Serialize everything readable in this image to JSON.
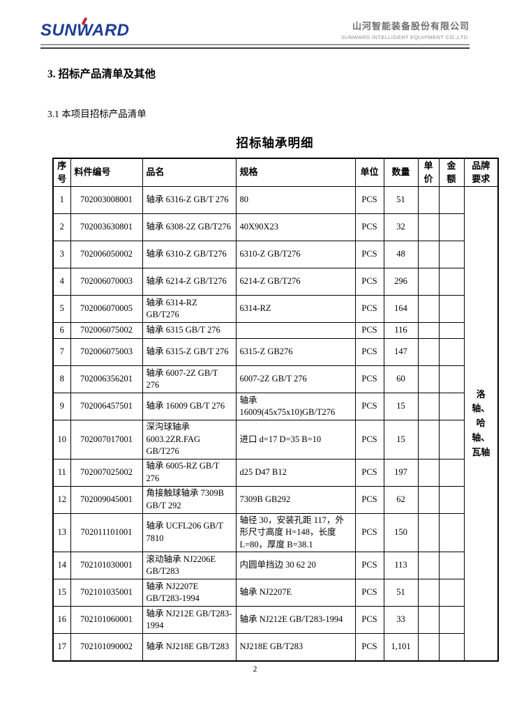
{
  "header": {
    "logo": "SUNWARD",
    "logo_color": "#1e3d96",
    "logo_accent_color": "#cf2030",
    "company_cn": "山河智能装备股份有限公司",
    "company_en": "SUNWARD INTELLIGENT EQUIPMENT CO.,LTD."
  },
  "headings": {
    "section": "3.  招标产品清单及其他",
    "subsection": "3.1 本项目招标产品清单",
    "table_title": "招标轴承明细"
  },
  "table": {
    "columns": [
      "序号",
      "料件编号",
      "品名",
      "规格",
      "单位",
      "数量",
      "单价",
      "金额",
      "品牌要求"
    ],
    "brand_requirement": "洛轴、哈轴、瓦轴",
    "rows": [
      {
        "no": "1",
        "code": "702003008001",
        "name": "轴承 6316-Z GB/T 276",
        "spec": "80",
        "unit": "PCS",
        "qty": "51"
      },
      {
        "no": "2",
        "code": "702003630801",
        "name": "轴承 6308-2Z GB/T276",
        "spec": "40X90X23",
        "unit": "PCS",
        "qty": "32"
      },
      {
        "no": "3",
        "code": "702006050002",
        "name": "轴承 6310-Z GB/T276",
        "spec": "6310-Z GB/T276",
        "unit": "PCS",
        "qty": "48"
      },
      {
        "no": "4",
        "code": "702006070003",
        "name": "轴承 6214-Z GB/T276",
        "spec": "6214-Z GB/T276",
        "unit": "PCS",
        "qty": "296"
      },
      {
        "no": "5",
        "code": "702006070005",
        "name": "轴承 6314-RZ GB/T276",
        "spec": "6314-RZ",
        "unit": "PCS",
        "qty": "164"
      },
      {
        "no": "6",
        "code": "702006075002",
        "name": "轴承 6315 GB/T 276",
        "spec": "",
        "unit": "PCS",
        "qty": "116"
      },
      {
        "no": "7",
        "code": "702006075003",
        "name": "轴承 6315-Z GB/T 276",
        "spec": "6315-Z GB276",
        "unit": "PCS",
        "qty": "147"
      },
      {
        "no": "8",
        "code": "702006356201",
        "name": "轴承 6007-2Z GB/T 276",
        "spec": "6007-2Z GB/T 276",
        "unit": "PCS",
        "qty": "60"
      },
      {
        "no": "9",
        "code": "702006457501",
        "name": "轴承 16009 GB/T 276",
        "spec": "轴承 16009(45x75x10)GB/T276",
        "unit": "PCS",
        "qty": "15"
      },
      {
        "no": "10",
        "code": "702007017001",
        "name": "深沟球轴承 6003.2ZR.FAG GB/T276",
        "spec": "进口  d=17 D=35 B=10",
        "unit": "PCS",
        "qty": "15"
      },
      {
        "no": "11",
        "code": "702007025002",
        "name": "轴承 6005-RZ GB/T 276",
        "spec": "d25 D47 B12",
        "unit": "PCS",
        "qty": "197"
      },
      {
        "no": "12",
        "code": "702009045001",
        "name": "角接触球轴承 7309B GB/T 292",
        "spec": "7309B GB292",
        "unit": "PCS",
        "qty": "62"
      },
      {
        "no": "13",
        "code": "702011101001",
        "name": "轴承 UCFL206 GB/T 7810",
        "spec": "轴径 30，安装孔距 117，外形尺寸高度 H=148，长度 L=80，厚度 B=38.1",
        "unit": "PCS",
        "qty": "150"
      },
      {
        "no": "14",
        "code": "702101030001",
        "name": "滚动轴承 NJ2206E GB/T283",
        "spec": "内圆单挡边 30 62 20",
        "unit": "PCS",
        "qty": "113"
      },
      {
        "no": "15",
        "code": "702101035001",
        "name": "轴承 NJ2207E GB/T283-1994",
        "spec": "轴承 NJ2207E",
        "unit": "PCS",
        "qty": "51"
      },
      {
        "no": "16",
        "code": "702101060001",
        "name": "轴承 NJ212E GB/T283-1994",
        "spec": "轴承 NJ212E GB/T283-1994",
        "unit": "PCS",
        "qty": "33"
      },
      {
        "no": "17",
        "code": "702101090002",
        "name": "轴承 NJ218E GB/T283",
        "spec": "NJ218E GB/T283",
        "unit": "PCS",
        "qty": "1,101"
      }
    ]
  },
  "footer": {
    "page_number": "2"
  }
}
